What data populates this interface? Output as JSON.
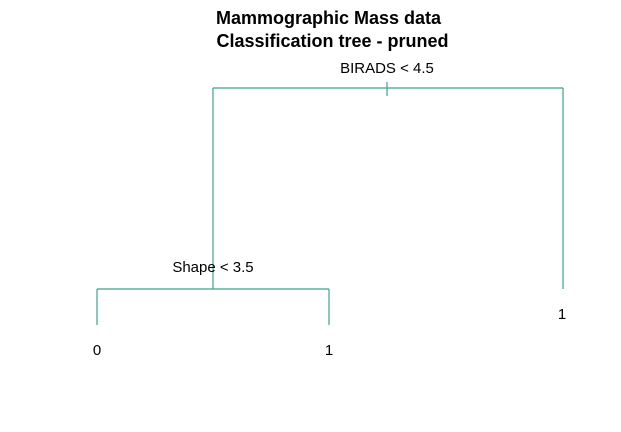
{
  "title": {
    "line1": "Mammographic Mass data",
    "line2": "Classification tree - pruned"
  },
  "tree": {
    "edge_color": "#3aa58a",
    "root": {
      "split": "BIRADS < 4.5",
      "left": {
        "split": "Shape < 3.5",
        "left": {
          "leaf": "0"
        },
        "right": {
          "leaf": "1"
        }
      },
      "right": {
        "leaf": "1"
      }
    }
  }
}
